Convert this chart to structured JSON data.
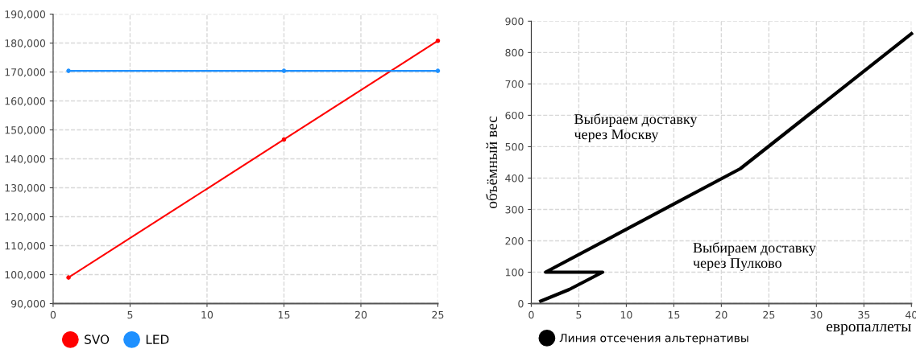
{
  "chart_data": [
    {
      "type": "line",
      "x": [
        1,
        15,
        25
      ],
      "series": [
        {
          "name": "SVO",
          "color": "#ff0000",
          "values": [
            99000,
            146700,
            180800
          ]
        },
        {
          "name": "LED",
          "color": "#1e90ff",
          "values": [
            170400,
            170400,
            170400
          ]
        }
      ],
      "xlim": [
        0,
        25
      ],
      "xticks": [
        0,
        5,
        10,
        15,
        20,
        25
      ],
      "ylim": [
        90000,
        190000
      ],
      "yticks": [
        {
          "value": 90000,
          "label": "90,000"
        },
        {
          "value": 100000,
          "label": "100,000"
        },
        {
          "value": 110000,
          "label": "110,000"
        },
        {
          "value": 120000,
          "label": "120,000"
        },
        {
          "value": 130000,
          "label": "130,000"
        },
        {
          "value": 140000,
          "label": "140,000"
        },
        {
          "value": 150000,
          "label": "150,000"
        },
        {
          "value": 160000,
          "label": "160,000"
        },
        {
          "value": 170000,
          "label": "170,000"
        },
        {
          "value": 180000,
          "label": "180,000"
        },
        {
          "value": 190000,
          "label": "190,000"
        }
      ],
      "grid": true,
      "legend": "bottom",
      "marker": "circle",
      "line_style": "solid"
    },
    {
      "type": "line",
      "xlabel": "европаллеты",
      "ylabel": "объёмный вес",
      "series": [
        {
          "name": "Линия отсечения альтернативы",
          "color": "#000000",
          "x": [
            1,
            4,
            7.5,
            1.5,
            22,
            40
          ],
          "values": [
            8,
            45,
            100,
            100,
            430,
            860
          ]
        }
      ],
      "xlim": [
        0,
        40
      ],
      "xticks": [
        0,
        5,
        10,
        15,
        20,
        25,
        30,
        35,
        40
      ],
      "ylim": [
        0,
        900
      ],
      "yticks": [
        0,
        100,
        200,
        300,
        400,
        500,
        600,
        700,
        800,
        900
      ],
      "annotations": [
        "Выбираем доставку\nчерез Москву",
        "Выбираем доставку\nчерез Пулково"
      ],
      "grid": true,
      "legend": "bottom",
      "line_style": "solid"
    }
  ]
}
